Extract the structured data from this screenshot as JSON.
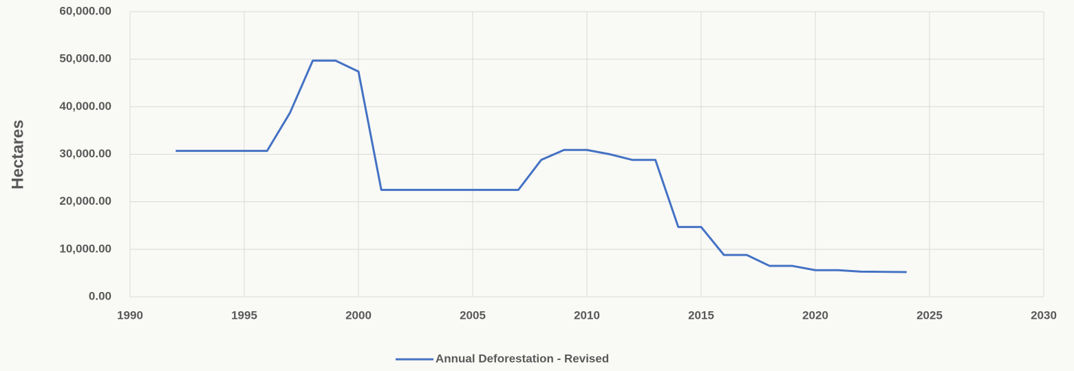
{
  "chart_data": {
    "type": "line",
    "y_label": "Hectares",
    "x": [
      1992,
      1993,
      1994,
      1995,
      1996,
      1997,
      1998,
      1999,
      2000,
      2001,
      2002,
      2003,
      2004,
      2005,
      2006,
      2007,
      2008,
      2009,
      2010,
      2011,
      2012,
      2013,
      2014,
      2015,
      2016,
      2017,
      2018,
      2019,
      2020,
      2021,
      2022,
      2023,
      2024
    ],
    "series": [
      {
        "name": "Annual Deforestation - Revised",
        "color": "#4472c4",
        "values": [
          30700,
          30700,
          30700,
          30700,
          30700,
          38700,
          49700,
          49700,
          47400,
          22500,
          22500,
          22500,
          22500,
          22500,
          22500,
          22500,
          28800,
          30900,
          30900,
          30000,
          28800,
          28800,
          14700,
          14700,
          8800,
          8800,
          6500,
          6500,
          5600,
          5600,
          5300,
          5250,
          5200
        ]
      }
    ],
    "xlim": [
      1990,
      2030
    ],
    "xticks": [
      1990,
      1995,
      2000,
      2005,
      2010,
      2015,
      2020,
      2025,
      2030
    ],
    "ylim": [
      0,
      60000
    ],
    "yticks": [
      {
        "value": 0,
        "label": "0.00"
      },
      {
        "value": 10000,
        "label": "10,000.00"
      },
      {
        "value": 20000,
        "label": "20,000.00"
      },
      {
        "value": 30000,
        "label": "30,000.00"
      },
      {
        "value": 40000,
        "label": "40,000.00"
      },
      {
        "value": 50000,
        "label": "50,000.00"
      },
      {
        "value": 60000,
        "label": "60,000.00"
      }
    ],
    "grid": true,
    "legend": "bottom"
  }
}
